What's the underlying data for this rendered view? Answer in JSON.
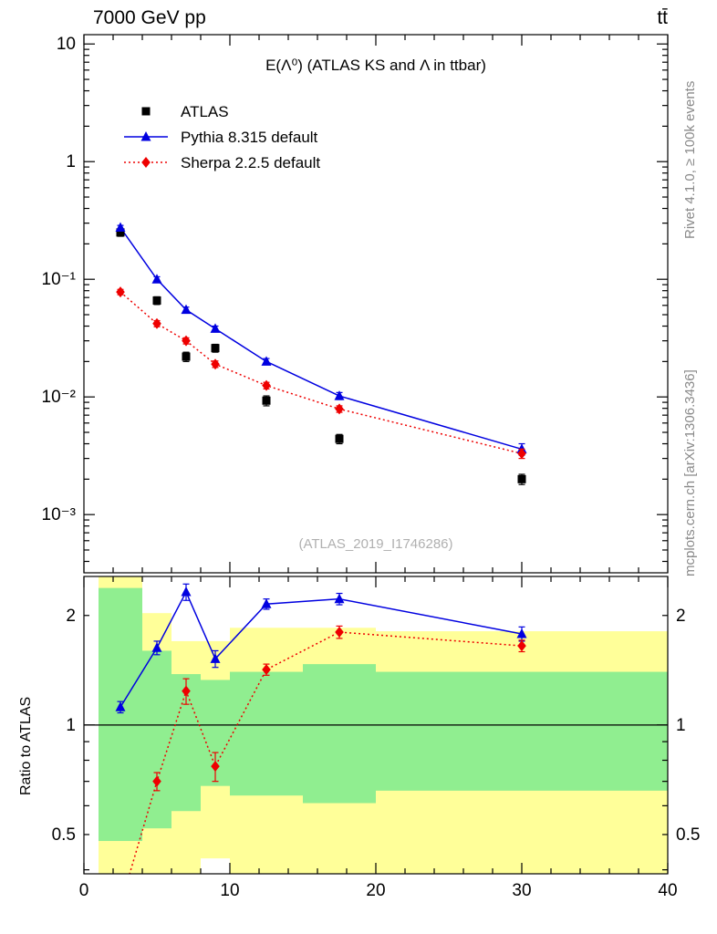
{
  "header": {
    "title_left": "7000 GeV pp",
    "title_right": "tt̄"
  },
  "side_labels": {
    "rivet": "Rivet 4.1.0, ≥ 100k events",
    "mcplots": "mcplots.cern.ch [arXiv:1306.3436]"
  },
  "watermark": "(ATLAS_2019_I1746286)",
  "ratio_ylabel": "Ratio to ATLAS",
  "chart_data": {
    "type": "scatter",
    "title": "E(Λ⁰) (ATLAS KS and Λ in ttbar)",
    "xlabel": "",
    "xlim": [
      0,
      40
    ],
    "x_ticks": [
      {
        "v": 0,
        "label": "0"
      },
      {
        "v": 10,
        "label": "10"
      },
      {
        "v": 20,
        "label": "20"
      },
      {
        "v": 30,
        "label": "30"
      },
      {
        "v": 40,
        "label": "40"
      }
    ],
    "x": [
      2.5,
      5,
      7,
      9,
      12.5,
      17.5,
      30
    ],
    "colors": {
      "yellow": "#ffff99",
      "green": "#90ee90",
      "blue": "#0000e0",
      "red": "#ee0000",
      "black": "#000000"
    },
    "main": {
      "yscale": "log",
      "ylim": [
        0.00032,
        12
      ],
      "y_ticks": [
        {
          "v": 10,
          "label": "10"
        },
        {
          "v": 1,
          "label": "1"
        },
        {
          "v": 0.1,
          "label": "10⁻¹"
        },
        {
          "v": 0.01,
          "label": "10⁻²"
        },
        {
          "v": 0.001,
          "label": "10⁻³"
        }
      ],
      "series": [
        {
          "name": "ATLAS",
          "marker": "square",
          "color": "#000000",
          "line": "none",
          "values": [
            0.25,
            0.066,
            0.022,
            0.026,
            0.0093,
            0.0044,
            0.002
          ],
          "errors": [
            0.018,
            0.005,
            0.002,
            0.002,
            0.0009,
            0.0004,
            0.0002
          ]
        },
        {
          "name": "Pythia 8.315 default",
          "marker": "triangle",
          "color": "#0000e0",
          "line": "solid",
          "values": [
            0.275,
            0.1,
            0.055,
            0.038,
            0.02,
            0.0102,
            0.0036
          ],
          "errors": [
            0.012,
            0.005,
            0.003,
            0.002,
            0.0012,
            0.0007,
            0.0004
          ]
        },
        {
          "name": "Sherpa 2.2.5 default",
          "marker": "diamond",
          "color": "#ee0000",
          "line": "dotted",
          "values": [
            0.078,
            0.042,
            0.03,
            0.019,
            0.0125,
            0.0079,
            0.0033
          ],
          "errors": [
            0.004,
            0.0025,
            0.0018,
            0.0012,
            0.0008,
            0.0005,
            0.0003
          ]
        }
      ]
    },
    "ratio": {
      "yscale": "log",
      "ylim": [
        0.39,
        2.56
      ],
      "y_ticks": [
        {
          "v": 2,
          "label": "2"
        },
        {
          "v": 1,
          "label": "1"
        },
        {
          "v": 0.5,
          "label": "0.5"
        }
      ],
      "reference": 1,
      "band_edges": [
        1,
        4,
        6,
        8,
        10,
        15,
        20,
        40
      ],
      "yellow_lo": [
        0.38,
        0.38,
        0.38,
        0.43,
        0.38,
        0.38,
        0.38
      ],
      "yellow_hi": [
        2.6,
        2.03,
        1.7,
        1.7,
        1.85,
        1.85,
        1.81
      ],
      "green_lo": [
        0.48,
        0.52,
        0.58,
        0.68,
        0.64,
        0.61,
        0.66
      ],
      "green_hi": [
        2.38,
        1.6,
        1.38,
        1.33,
        1.4,
        1.47,
        1.4
      ],
      "series": [
        {
          "name": "Pythia 8.315 default",
          "marker": "triangle",
          "color": "#0000e0",
          "line": "solid",
          "values": [
            1.12,
            1.63,
            2.32,
            1.52,
            2.15,
            2.22,
            1.78
          ],
          "errors": [
            0.04,
            0.07,
            0.12,
            0.08,
            0.07,
            0.08,
            0.08
          ]
        },
        {
          "name": "Sherpa 2.2.5 default",
          "marker": "diamond",
          "color": "#ee0000",
          "line": "dotted",
          "values": [
            0.32,
            0.7,
            1.24,
            0.77,
            1.42,
            1.8,
            1.65
          ],
          "errors": [
            0.03,
            0.04,
            0.1,
            0.07,
            0.05,
            0.07,
            0.06
          ]
        }
      ]
    }
  }
}
